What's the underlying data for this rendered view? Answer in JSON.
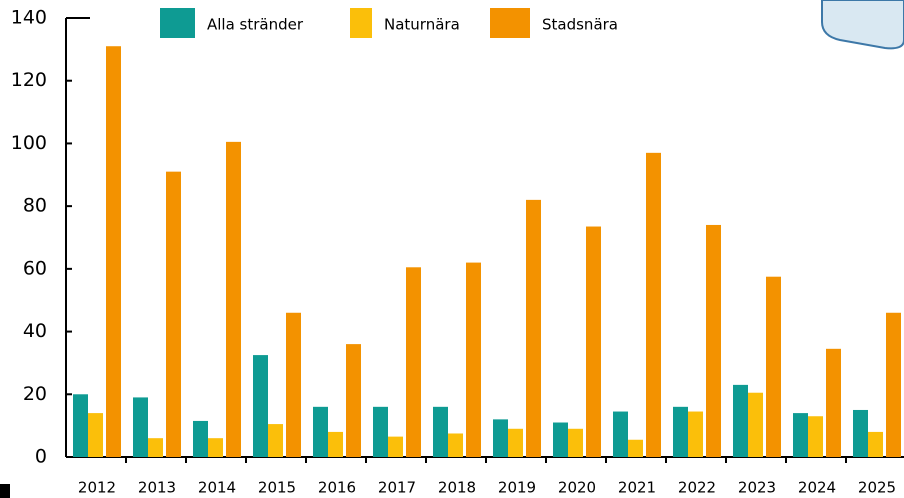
{
  "chart_data": {
    "type": "bar",
    "categories": [
      "2012",
      "2013",
      "2014",
      "2015",
      "2016",
      "2017",
      "2018",
      "2019",
      "2020",
      "2021",
      "2022",
      "2023",
      "2024",
      "2025"
    ],
    "series": [
      {
        "name": "Alla stränder",
        "color": "#0e9b93",
        "values": [
          20,
          19,
          11.5,
          32.5,
          16,
          16,
          16,
          12,
          11,
          14.5,
          16,
          23,
          14,
          15
        ]
      },
      {
        "name": "Naturnära",
        "color": "#fbbf0a",
        "values": [
          14,
          6,
          6,
          10.5,
          8,
          6.5,
          7.5,
          9,
          9,
          5.5,
          14.5,
          20.5,
          13,
          8
        ]
      },
      {
        "name": "Stadsnära",
        "color": "#f39200",
        "values": [
          131,
          91,
          100.5,
          46,
          36,
          60.5,
          62,
          82,
          73.5,
          97,
          74,
          57.5,
          34.5,
          46
        ]
      }
    ],
    "ylim": [
      0,
      140
    ],
    "yticks": [
      0,
      20,
      40,
      60,
      80,
      100,
      120,
      140
    ],
    "grid": false
  }
}
